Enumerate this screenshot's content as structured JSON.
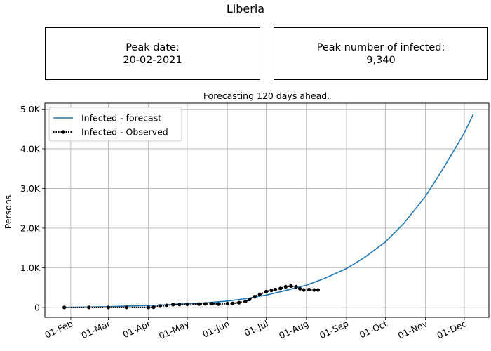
{
  "title": "Liberia",
  "kpis": {
    "peak_date": {
      "label": "Peak date:",
      "value": "20-02-2021"
    },
    "peak_number": {
      "label": "Peak number of infected:",
      "value": "9,340"
    }
  },
  "chart_data": {
    "type": "line",
    "title": "Forecasting 120 days ahead.",
    "xlabel": "",
    "ylabel": "Persons",
    "x_range": [
      "2020-01-12",
      "2020-12-20"
    ],
    "ylim": [
      -250,
      5150
    ],
    "grid": true,
    "legend_position": "top-left",
    "x_ticks": [
      {
        "date": "2020-02-01",
        "label": "01-Feb"
      },
      {
        "date": "2020-03-01",
        "label": "01-Mar"
      },
      {
        "date": "2020-04-01",
        "label": "01-Apr"
      },
      {
        "date": "2020-05-01",
        "label": "01-May"
      },
      {
        "date": "2020-06-01",
        "label": "01-Jun"
      },
      {
        "date": "2020-07-01",
        "label": "01-Jul"
      },
      {
        "date": "2020-08-01",
        "label": "01-Aug"
      },
      {
        "date": "2020-09-01",
        "label": "01-Sep"
      },
      {
        "date": "2020-10-01",
        "label": "01-Oct"
      },
      {
        "date": "2020-11-01",
        "label": "01-Nov"
      },
      {
        "date": "2020-12-01",
        "label": "01-Dec"
      }
    ],
    "y_ticks": [
      {
        "value": 0,
        "label": "0"
      },
      {
        "value": 1000,
        "label": "1.0K"
      },
      {
        "value": 2000,
        "label": "2.0K"
      },
      {
        "value": 3000,
        "label": "3.0K"
      },
      {
        "value": 4000,
        "label": "4.0K"
      },
      {
        "value": 5000,
        "label": "5.0K"
      }
    ],
    "series": [
      {
        "name": "Infected - forecast",
        "color": "#1f77b4",
        "style": "solid",
        "points": [
          [
            "2020-01-27",
            0
          ],
          [
            "2020-02-15",
            10
          ],
          [
            "2020-03-01",
            20
          ],
          [
            "2020-03-15",
            35
          ],
          [
            "2020-04-01",
            50
          ],
          [
            "2020-04-15",
            65
          ],
          [
            "2020-05-01",
            90
          ],
          [
            "2020-05-15",
            115
          ],
          [
            "2020-06-01",
            160
          ],
          [
            "2020-06-15",
            220
          ],
          [
            "2020-07-01",
            310
          ],
          [
            "2020-07-15",
            420
          ],
          [
            "2020-08-01",
            560
          ],
          [
            "2020-08-15",
            730
          ],
          [
            "2020-09-01",
            980
          ],
          [
            "2020-09-15",
            1260
          ],
          [
            "2020-10-01",
            1650
          ],
          [
            "2020-10-15",
            2110
          ],
          [
            "2020-11-01",
            2800
          ],
          [
            "2020-11-15",
            3520
          ],
          [
            "2020-12-01",
            4400
          ],
          [
            "2020-12-08",
            4880
          ]
        ]
      },
      {
        "name": "Infected - Observed",
        "color": "#000000",
        "style": "dotted-markers",
        "points": [
          [
            "2020-01-27",
            0
          ],
          [
            "2020-02-15",
            0
          ],
          [
            "2020-03-01",
            0
          ],
          [
            "2020-03-15",
            0
          ],
          [
            "2020-04-01",
            0
          ],
          [
            "2020-04-05",
            5
          ],
          [
            "2020-04-10",
            35
          ],
          [
            "2020-04-15",
            50
          ],
          [
            "2020-04-20",
            70
          ],
          [
            "2020-04-25",
            75
          ],
          [
            "2020-05-01",
            80
          ],
          [
            "2020-05-10",
            85
          ],
          [
            "2020-05-15",
            90
          ],
          [
            "2020-05-20",
            95
          ],
          [
            "2020-05-25",
            85
          ],
          [
            "2020-06-01",
            95
          ],
          [
            "2020-06-05",
            100
          ],
          [
            "2020-06-10",
            120
          ],
          [
            "2020-06-15",
            150
          ],
          [
            "2020-06-18",
            200
          ],
          [
            "2020-06-22",
            270
          ],
          [
            "2020-06-26",
            330
          ],
          [
            "2020-07-01",
            400
          ],
          [
            "2020-07-05",
            430
          ],
          [
            "2020-07-08",
            450
          ],
          [
            "2020-07-12",
            480
          ],
          [
            "2020-07-16",
            520
          ],
          [
            "2020-07-20",
            540
          ],
          [
            "2020-07-24",
            520
          ],
          [
            "2020-07-27",
            470
          ],
          [
            "2020-07-30",
            440
          ],
          [
            "2020-08-03",
            450
          ],
          [
            "2020-08-07",
            440
          ],
          [
            "2020-08-10",
            440
          ]
        ]
      }
    ]
  }
}
